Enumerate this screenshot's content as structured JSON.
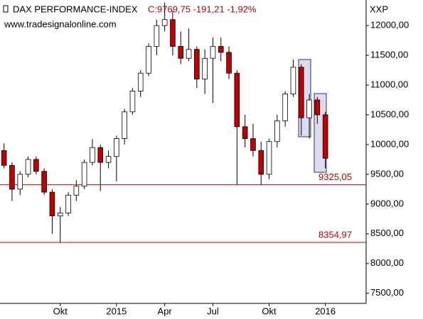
{
  "chart_data": {
    "type": "candlestick",
    "title": "DAX PERFORMANCE-INDEX",
    "quote": "C:9769,75 -191,21 -1,92%",
    "source": "www.tradesignalonline.com",
    "axis_label": "XXP",
    "categories": [
      null,
      null,
      null,
      null,
      null,
      null,
      null,
      "Okt",
      null,
      null,
      null,
      null,
      null,
      null,
      "2015",
      null,
      null,
      null,
      null,
      null,
      "Apr",
      null,
      null,
      null,
      null,
      null,
      "Jul",
      null,
      null,
      null,
      null,
      null,
      null,
      "Okt",
      null,
      null,
      null,
      null,
      null,
      null,
      "2016"
    ],
    "open": [
      9900,
      9650,
      9250,
      9500,
      9750,
      9550,
      9200,
      8800,
      8850,
      9150,
      9300,
      9700,
      9950,
      9700,
      9800,
      10100,
      10550,
      10900,
      11200,
      11650,
      12000,
      12100,
      11650,
      11450,
      11600,
      11100,
      11450,
      11650,
      11550,
      11200,
      10300,
      10100,
      9900,
      9500,
      10050,
      10400,
      10850,
      11300,
      10450,
      10750,
      10500
    ],
    "high": [
      10020,
      9700,
      9550,
      9800,
      9800,
      9600,
      9250,
      8950,
      9200,
      9400,
      9750,
      10090,
      10000,
      9900,
      10150,
      10600,
      10950,
      11250,
      11700,
      12100,
      12390,
      12250,
      11900,
      11950,
      11650,
      11600,
      11800,
      11800,
      11650,
      11250,
      10500,
      10350,
      10050,
      10100,
      10500,
      10900,
      11430,
      11350,
      10850,
      10800,
      10550
    ],
    "low": [
      9600,
      9050,
      9150,
      9450,
      9500,
      9150,
      8500,
      8355,
      8800,
      9050,
      9250,
      9650,
      9220,
      9600,
      9380,
      10000,
      10500,
      10800,
      11150,
      11500,
      11900,
      11500,
      11350,
      11400,
      10950,
      10850,
      10700,
      11400,
      11100,
      9330,
      9950,
      9800,
      9325,
      9420,
      9950,
      10300,
      10800,
      10150,
      10100,
      10350,
      9600
    ],
    "close": [
      9650,
      9250,
      9500,
      9750,
      9550,
      9200,
      8800,
      8850,
      9150,
      9300,
      9700,
      9950,
      9700,
      9800,
      10100,
      10550,
      10900,
      11200,
      11650,
      12000,
      12100,
      11650,
      11450,
      11600,
      11100,
      11450,
      11650,
      11550,
      11200,
      10300,
      10100,
      9900,
      9500,
      10050,
      10400,
      10850,
      11300,
      10450,
      10750,
      10500,
      9770
    ],
    "up_color": "#ffffff",
    "down_color": "#c00000",
    "ylim": [
      7330,
      12430
    ],
    "yticks": [
      {
        "value": 7500,
        "label": "7500,00"
      },
      {
        "value": 8000,
        "label": "8000,00"
      },
      {
        "value": 8500,
        "label": "8500,00"
      },
      {
        "value": 9000,
        "label": "9000,00"
      },
      {
        "value": 9500,
        "label": "9500,00"
      },
      {
        "value": 10000,
        "label": "10000,00"
      },
      {
        "value": 10500,
        "label": "10500,00"
      },
      {
        "value": 11000,
        "label": "11000,00"
      },
      {
        "value": 11500,
        "label": "11500,00"
      },
      {
        "value": 12000,
        "label": "12000,00"
      }
    ],
    "hlines": [
      {
        "value": 9325.05,
        "label": "9325,05"
      },
      {
        "value": 8354.97,
        "label": "8354,97"
      }
    ],
    "hline_color": "#c00000"
  }
}
